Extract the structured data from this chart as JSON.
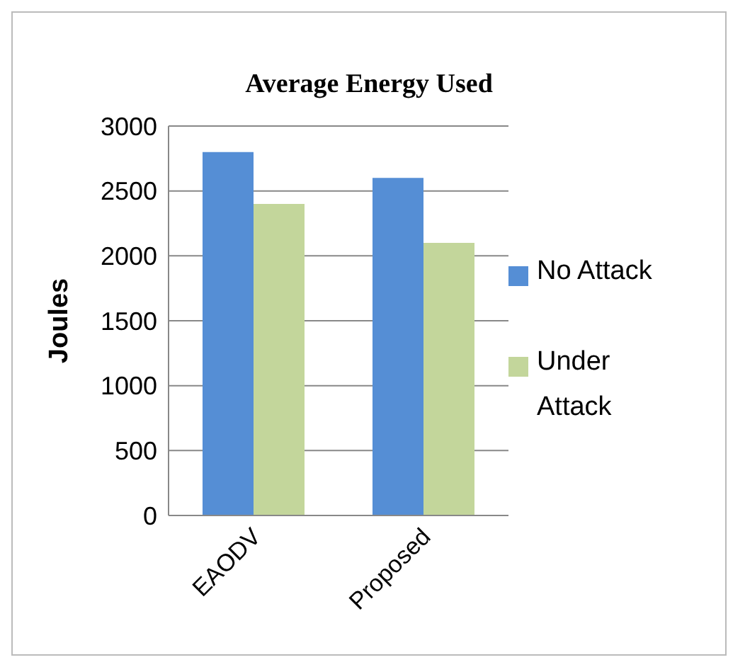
{
  "chart_data": {
    "type": "bar",
    "title": "Average Energy Used",
    "ylabel": "Joules",
    "categories": [
      "EAODV",
      "Proposed"
    ],
    "series": [
      {
        "name": "No Attack",
        "color": "#558ed5",
        "values": [
          2800,
          2600
        ]
      },
      {
        "name": "Under Attack",
        "color": "#c3d69b",
        "values": [
          2400,
          2100
        ]
      }
    ],
    "ylim": [
      0,
      3000
    ],
    "yticks": [
      0,
      500,
      1000,
      1500,
      2000,
      2500,
      3000
    ],
    "grid": "y",
    "legend": "right"
  }
}
